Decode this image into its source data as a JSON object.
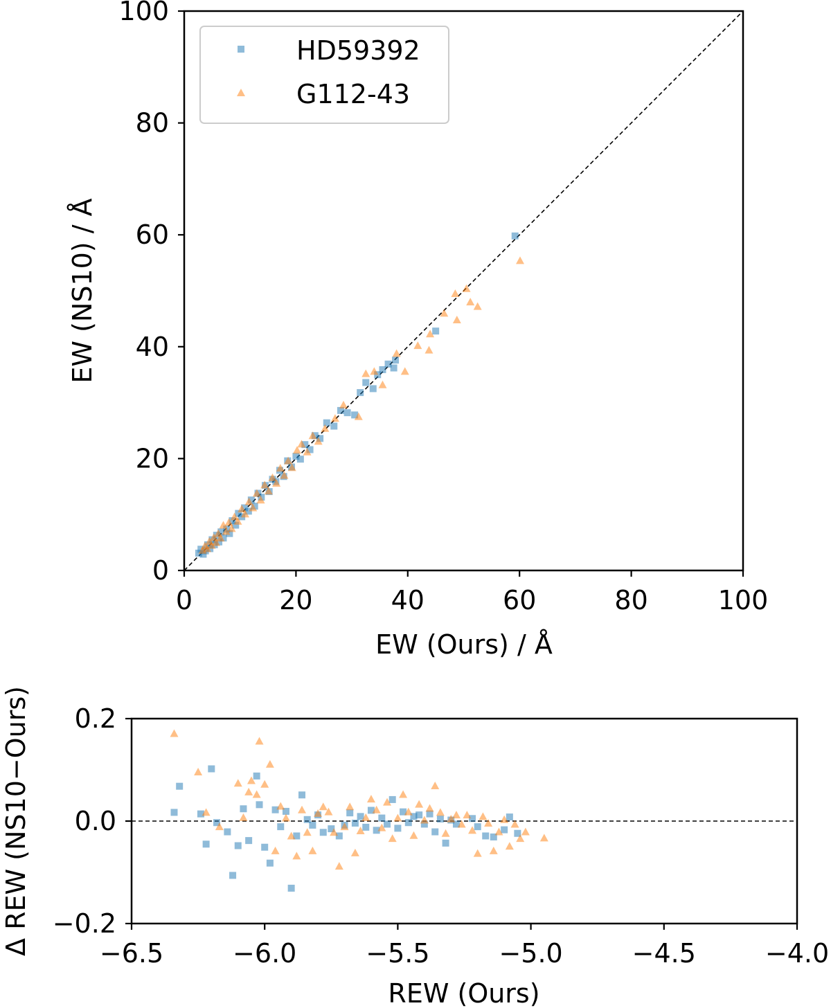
{
  "chart_data": [
    {
      "type": "scatter",
      "xlabel": "EW (Ours) / Å",
      "ylabel": "EW (NS10) / Å",
      "xlim": [
        0,
        100
      ],
      "ylim": [
        0,
        100
      ],
      "xticks": [
        "0",
        "20",
        "40",
        "60",
        "80",
        "100"
      ],
      "yticks": [
        "0",
        "20",
        "40",
        "60",
        "80",
        "100"
      ],
      "reference_line": "y = x (dashed)",
      "legend_position": "upper-left",
      "grid": false,
      "series": [
        {
          "name": "HD59392",
          "marker": "square",
          "color": "#1f77b4",
          "points": [
            [
              2.6,
              3.1
            ],
            [
              3.0,
              3.8
            ],
            [
              3.4,
              2.9
            ],
            [
              3.8,
              3.5
            ],
            [
              4.2,
              4.6
            ],
            [
              4.6,
              3.9
            ],
            [
              5.0,
              5.5
            ],
            [
              5.4,
              4.6
            ],
            [
              5.8,
              6.3
            ],
            [
              6.2,
              5.1
            ],
            [
              6.6,
              6.9
            ],
            [
              7.0,
              5.8
            ],
            [
              7.6,
              7.4
            ],
            [
              8.1,
              6.6
            ],
            [
              8.6,
              8.9
            ],
            [
              9.2,
              8.1
            ],
            [
              9.7,
              10.2
            ],
            [
              10.3,
              9.6
            ],
            [
              10.8,
              11.2
            ],
            [
              11.5,
              10.6
            ],
            [
              12.0,
              12.6
            ],
            [
              12.6,
              11.5
            ],
            [
              13.2,
              13.8
            ],
            [
              13.8,
              13.1
            ],
            [
              14.5,
              15.2
            ],
            [
              15.2,
              14.1
            ],
            [
              15.8,
              16.3
            ],
            [
              16.4,
              15.9
            ],
            [
              17.1,
              17.9
            ],
            [
              17.8,
              16.8
            ],
            [
              18.5,
              19.6
            ],
            [
              19.2,
              18.5
            ],
            [
              20.0,
              20.4
            ],
            [
              20.8,
              19.9
            ],
            [
              21.6,
              22.5
            ],
            [
              22.5,
              21.6
            ],
            [
              23.4,
              24.1
            ],
            [
              24.3,
              23.6
            ],
            [
              25.5,
              26.4
            ],
            [
              26.8,
              25.8
            ],
            [
              28.0,
              28.6
            ],
            [
              29.2,
              28.2
            ],
            [
              30.5,
              27.8
            ],
            [
              31.5,
              31.8
            ],
            [
              32.5,
              33.6
            ],
            [
              33.8,
              32.5
            ],
            [
              34.6,
              35.0
            ],
            [
              35.5,
              35.9
            ],
            [
              36.5,
              36.9
            ],
            [
              37.5,
              36.2
            ],
            [
              37.8,
              37.6
            ],
            [
              45.0,
              42.8
            ],
            [
              59.2,
              59.8
            ]
          ]
        },
        {
          "name": "G112-43",
          "marker": "triangle",
          "color": "#ff7f0e",
          "points": [
            [
              3.3,
              3.6
            ],
            [
              3.7,
              4.4
            ],
            [
              4.1,
              3.9
            ],
            [
              4.5,
              5.2
            ],
            [
              4.9,
              4.5
            ],
            [
              5.3,
              5.9
            ],
            [
              5.7,
              5.0
            ],
            [
              6.1,
              6.6
            ],
            [
              6.5,
              5.8
            ],
            [
              7.0,
              8.1
            ],
            [
              7.5,
              7.0
            ],
            [
              8.0,
              8.6
            ],
            [
              8.5,
              7.5
            ],
            [
              9.0,
              9.6
            ],
            [
              9.6,
              8.8
            ],
            [
              10.3,
              11.0
            ],
            [
              10.9,
              10.1
            ],
            [
              11.6,
              12.3
            ],
            [
              12.3,
              11.2
            ],
            [
              13.0,
              13.8
            ],
            [
              13.7,
              12.6
            ],
            [
              14.4,
              15.3
            ],
            [
              15.1,
              14.2
            ],
            [
              15.8,
              16.6
            ],
            [
              16.5,
              15.6
            ],
            [
              17.2,
              18.3
            ],
            [
              17.9,
              17.0
            ],
            [
              18.6,
              19.6
            ],
            [
              19.3,
              18.4
            ],
            [
              20.2,
              21.5
            ],
            [
              21.0,
              22.6
            ],
            [
              22.0,
              21.2
            ],
            [
              23.0,
              24.1
            ],
            [
              24.0,
              23.1
            ],
            [
              25.2,
              25.4
            ],
            [
              27.0,
              27.2
            ],
            [
              28.5,
              29.6
            ],
            [
              31.2,
              27.5
            ],
            [
              32.5,
              35.2
            ],
            [
              34.0,
              35.6
            ],
            [
              35.5,
              33.2
            ],
            [
              38.0,
              38.8
            ],
            [
              39.5,
              35.6
            ],
            [
              41.8,
              40.2
            ],
            [
              43.8,
              39.4
            ],
            [
              44.0,
              42.3
            ],
            [
              46.5,
              46.0
            ],
            [
              48.5,
              49.5
            ],
            [
              48.8,
              44.8
            ],
            [
              50.5,
              50.4
            ],
            [
              51.2,
              48.0
            ],
            [
              52.5,
              47.2
            ],
            [
              60.1,
              55.4
            ]
          ]
        }
      ]
    },
    {
      "type": "scatter",
      "xlabel": "REW (Ours)",
      "ylabel": "Δ REW (NS10−Ours)",
      "xlim": [
        -6.5,
        -4.0
      ],
      "ylim": [
        -0.2,
        0.2
      ],
      "xticks": [
        "−6.5",
        "−6.0",
        "−5.5",
        "−5.0",
        "−4.5",
        "−4.0"
      ],
      "yticks": [
        "−0.2",
        "0.0",
        "0.2"
      ],
      "reference_line": "y = 0 (dashed)",
      "grid": false,
      "series": [
        {
          "name": "HD59392",
          "marker": "square",
          "color": "#1f77b4",
          "points": [
            [
              -6.34,
              0.017
            ],
            [
              -6.32,
              0.068
            ],
            [
              -6.24,
              0.014
            ],
            [
              -6.22,
              -0.045
            ],
            [
              -6.2,
              0.102
            ],
            [
              -6.18,
              -0.003
            ],
            [
              -6.14,
              -0.021
            ],
            [
              -6.12,
              -0.106
            ],
            [
              -6.1,
              -0.048
            ],
            [
              -6.08,
              0.024
            ],
            [
              -6.06,
              -0.038
            ],
            [
              -6.03,
              0.088
            ],
            [
              -6.02,
              0.032
            ],
            [
              -6.0,
              -0.051
            ],
            [
              -5.98,
              -0.082
            ],
            [
              -5.96,
              0.022
            ],
            [
              -5.94,
              -0.011
            ],
            [
              -5.92,
              0.019
            ],
            [
              -5.9,
              -0.131
            ],
            [
              -5.88,
              -0.029
            ],
            [
              -5.86,
              0.051
            ],
            [
              -5.84,
              0.003
            ],
            [
              -5.82,
              -0.008
            ],
            [
              -5.8,
              0.012
            ],
            [
              -5.78,
              -0.022
            ],
            [
              -5.75,
              -0.015
            ],
            [
              -5.72,
              -0.029
            ],
            [
              -5.7,
              -0.008
            ],
            [
              -5.68,
              0.016
            ],
            [
              -5.66,
              -0.004
            ],
            [
              -5.64,
              0.009
            ],
            [
              -5.62,
              -0.012
            ],
            [
              -5.6,
              0.021
            ],
            [
              -5.58,
              -0.018
            ],
            [
              -5.56,
              0.006
            ],
            [
              -5.54,
              -0.006
            ],
            [
              -5.52,
              0.042
            ],
            [
              -5.5,
              -0.014
            ],
            [
              -5.48,
              0.018
            ],
            [
              -5.46,
              -0.003
            ],
            [
              -5.44,
              0.009
            ],
            [
              -5.42,
              0.012
            ],
            [
              -5.4,
              -0.006
            ],
            [
              -5.38,
              0.014
            ],
            [
              -5.36,
              -0.021
            ],
            [
              -5.34,
              0.004
            ],
            [
              -5.32,
              -0.043
            ],
            [
              -5.3,
              0.002
            ],
            [
              -5.28,
              -0.006
            ],
            [
              -5.22,
              0.005
            ],
            [
              -5.2,
              -0.011
            ],
            [
              -5.17,
              -0.029
            ],
            [
              -5.14,
              -0.031
            ],
            [
              -5.1,
              -0.017
            ],
            [
              -5.08,
              0.008
            ],
            [
              -5.05,
              -0.024
            ]
          ]
        },
        {
          "name": "G112-43",
          "marker": "triangle",
          "color": "#ff7f0e",
          "points": [
            [
              -6.34,
              0.171
            ],
            [
              -6.25,
              0.096
            ],
            [
              -6.22,
              0.017
            ],
            [
              -6.17,
              -0.011
            ],
            [
              -6.1,
              0.074
            ],
            [
              -6.08,
              0.007
            ],
            [
              -6.06,
              0.057
            ],
            [
              -6.05,
              0.079
            ],
            [
              -6.03,
              0.052
            ],
            [
              -6.02,
              0.156
            ],
            [
              -6.0,
              0.072
            ],
            [
              -5.98,
              0.111
            ],
            [
              -5.96,
              -0.058
            ],
            [
              -5.94,
              0.029
            ],
            [
              -5.92,
              0.006
            ],
            [
              -5.9,
              -0.029
            ],
            [
              -5.88,
              -0.068
            ],
            [
              -5.86,
              0.022
            ],
            [
              -5.84,
              -0.022
            ],
            [
              -5.82,
              -0.058
            ],
            [
              -5.8,
              0.015
            ],
            [
              -5.78,
              0.028
            ],
            [
              -5.76,
              0.018
            ],
            [
              -5.74,
              -0.022
            ],
            [
              -5.72,
              -0.088
            ],
            [
              -5.7,
              -0.011
            ],
            [
              -5.68,
              0.028
            ],
            [
              -5.66,
              -0.062
            ],
            [
              -5.64,
              -0.019
            ],
            [
              -5.62,
              0.007
            ],
            [
              -5.6,
              0.043
            ],
            [
              -5.58,
              0.022
            ],
            [
              -5.56,
              -0.013
            ],
            [
              -5.54,
              0.037
            ],
            [
              -5.52,
              -0.034
            ],
            [
              -5.5,
              0.006
            ],
            [
              -5.48,
              0.052
            ],
            [
              -5.46,
              0.018
            ],
            [
              -5.44,
              -0.028
            ],
            [
              -5.42,
              0.033
            ],
            [
              -5.4,
              0.002
            ],
            [
              -5.38,
              0.025
            ],
            [
              -5.36,
              0.069
            ],
            [
              -5.34,
              0.017
            ],
            [
              -5.32,
              -0.024
            ],
            [
              -5.3,
              0.004
            ],
            [
              -5.28,
              0.012
            ],
            [
              -5.26,
              -0.006
            ],
            [
              -5.24,
              0.012
            ],
            [
              -5.22,
              -0.018
            ],
            [
              -5.2,
              -0.063
            ],
            [
              -5.18,
              0.009
            ],
            [
              -5.16,
              -0.004
            ],
            [
              -5.14,
              -0.058
            ],
            [
              -5.12,
              -0.021
            ],
            [
              -5.1,
              0.003
            ],
            [
              -5.08,
              -0.049
            ],
            [
              -5.06,
              -0.006
            ],
            [
              -5.04,
              -0.034
            ],
            [
              -5.02,
              -0.021
            ],
            [
              -4.95,
              -0.033
            ]
          ]
        }
      ]
    }
  ]
}
